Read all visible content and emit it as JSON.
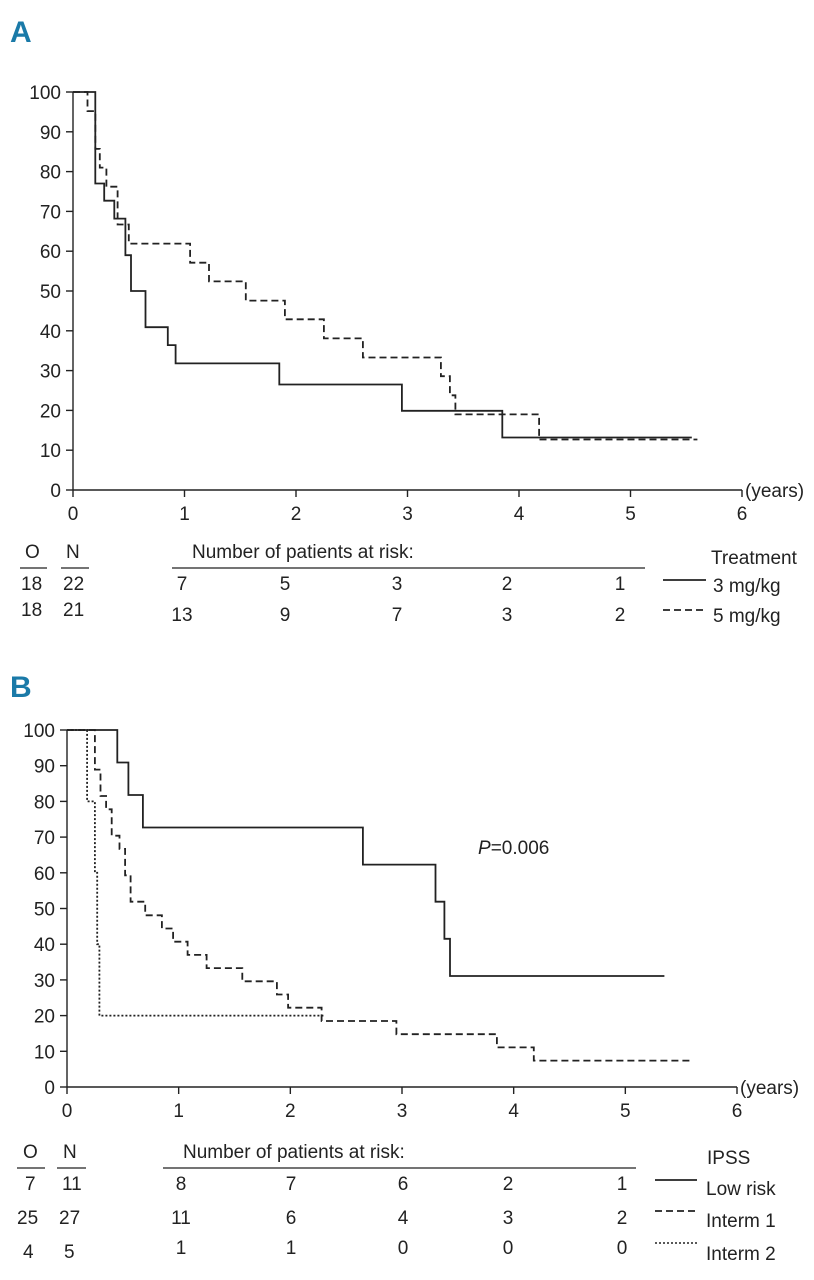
{
  "chart_data": [
    {
      "panel": "A",
      "type": "line",
      "subtype": "kaplan-meier step",
      "xlabel": "(years)",
      "xlim": [
        0,
        6
      ],
      "ylim": [
        0,
        100
      ],
      "xticks": [
        0,
        1,
        2,
        3,
        4,
        5,
        6
      ],
      "yticks": [
        0,
        10,
        20,
        30,
        40,
        50,
        60,
        70,
        80,
        90,
        100
      ],
      "legend_title": "Treatment",
      "series": [
        {
          "name": "3 mg/kg",
          "style": "solid",
          "x": [
            0,
            0.2,
            0.2,
            0.28,
            0.28,
            0.37,
            0.37,
            0.47,
            0.47,
            0.52,
            0.52,
            0.65,
            0.65,
            0.85,
            0.85,
            0.92,
            0.92,
            1.85,
            1.85,
            2.95,
            2.95,
            3.85,
            3.85,
            5.55
          ],
          "y": [
            100,
            100,
            77,
            77,
            72.7,
            72.7,
            68.2,
            68.2,
            59,
            59,
            50,
            50,
            40.9,
            40.9,
            36.4,
            36.4,
            31.8,
            31.8,
            26.5,
            26.5,
            19.9,
            19.9,
            13.2,
            13.2
          ]
        },
        {
          "name": "5 mg/kg",
          "style": "dashed",
          "x": [
            0,
            0.13,
            0.13,
            0.2,
            0.2,
            0.24,
            0.24,
            0.3,
            0.3,
            0.4,
            0.4,
            0.5,
            0.5,
            1.05,
            1.05,
            1.22,
            1.22,
            1.55,
            1.55,
            1.9,
            1.9,
            2.25,
            2.25,
            2.6,
            2.6,
            3.3,
            3.3,
            3.38,
            3.38,
            3.43,
            3.43,
            4.18,
            4.18,
            5.6
          ],
          "y": [
            100,
            100,
            95.2,
            95.2,
            85.7,
            85.7,
            81,
            81,
            76.2,
            76.2,
            66.7,
            66.7,
            61.9,
            61.9,
            57.1,
            57.1,
            52.4,
            52.4,
            47.6,
            47.6,
            42.9,
            42.9,
            38.1,
            38.1,
            33.3,
            33.3,
            28.6,
            28.6,
            23.8,
            23.8,
            19,
            19,
            12.7,
            12.7
          ]
        }
      ],
      "risk_table": {
        "header_o": "O",
        "header_n": "N",
        "title": "Number of patients at risk:",
        "rows": [
          {
            "o": "18",
            "n": "22",
            "counts": [
              "7",
              "5",
              "3",
              "2",
              "1"
            ],
            "legend": "3 mg/kg"
          },
          {
            "o": "18",
            "n": "21",
            "counts": [
              "13",
              "9",
              "7",
              "3",
              "2"
            ],
            "legend": "5 mg/kg"
          }
        ]
      }
    },
    {
      "panel": "B",
      "type": "line",
      "subtype": "kaplan-meier step",
      "xlabel": "(years)",
      "xlim": [
        0,
        6
      ],
      "ylim": [
        0,
        100
      ],
      "xticks": [
        0,
        1,
        2,
        3,
        4,
        5,
        6
      ],
      "yticks": [
        0,
        10,
        20,
        30,
        40,
        50,
        60,
        70,
        80,
        90,
        100
      ],
      "annotation": "P=0.006",
      "legend_title": "IPSS",
      "series": [
        {
          "name": "Low risk",
          "style": "solid",
          "x": [
            0,
            0.45,
            0.45,
            0.55,
            0.55,
            0.68,
            0.68,
            2.65,
            2.65,
            3.3,
            3.3,
            3.38,
            3.38,
            3.43,
            3.43,
            5.35
          ],
          "y": [
            100,
            100,
            90.9,
            90.9,
            81.8,
            81.8,
            72.7,
            72.7,
            62.3,
            62.3,
            51.9,
            51.9,
            41.5,
            41.5,
            31.1,
            31.1
          ]
        },
        {
          "name": "Interm 1",
          "style": "dashed",
          "x": [
            0,
            0.25,
            0.25,
            0.3,
            0.3,
            0.35,
            0.35,
            0.4,
            0.4,
            0.47,
            0.47,
            0.52,
            0.52,
            0.57,
            0.57,
            0.7,
            0.7,
            0.85,
            0.85,
            0.95,
            0.95,
            1.08,
            1.08,
            1.25,
            1.25,
            1.57,
            1.57,
            1.88,
            1.88,
            1.98,
            1.98,
            2.28,
            2.28,
            2.95,
            2.95,
            3.85,
            3.85,
            4.18,
            4.18,
            5.6
          ],
          "y": [
            100,
            100,
            88.9,
            88.9,
            81.5,
            81.5,
            77.8,
            77.8,
            70.4,
            70.4,
            66.7,
            66.7,
            59.3,
            59.3,
            51.9,
            51.9,
            48.1,
            48.1,
            44.4,
            44.4,
            40.7,
            40.7,
            37,
            37,
            33.3,
            33.3,
            29.6,
            29.6,
            25.9,
            25.9,
            22.2,
            22.2,
            18.5,
            18.5,
            14.8,
            14.8,
            11.1,
            11.1,
            7.4,
            7.4
          ]
        },
        {
          "name": "Interm 2",
          "style": "dotted",
          "x": [
            0,
            0.18,
            0.18,
            0.25,
            0.25,
            0.27,
            0.27,
            0.29,
            0.29,
            2.3
          ],
          "y": [
            100,
            100,
            80,
            80,
            60,
            60,
            40,
            40,
            20,
            20
          ]
        }
      ],
      "risk_table": {
        "header_o": "O",
        "header_n": "N",
        "title": "Number of patients at risk:",
        "rows": [
          {
            "o": "7",
            "n": "11",
            "counts": [
              "8",
              "7",
              "6",
              "2",
              "1"
            ],
            "legend": "Low risk"
          },
          {
            "o": "25",
            "n": "27",
            "counts": [
              "11",
              "6",
              "4",
              "3",
              "2"
            ],
            "legend": "Interm 1"
          },
          {
            "o": "4",
            "n": "5",
            "counts": [
              "1",
              "1",
              "0",
              "0",
              "0"
            ],
            "legend": "Interm 2"
          }
        ]
      }
    }
  ]
}
